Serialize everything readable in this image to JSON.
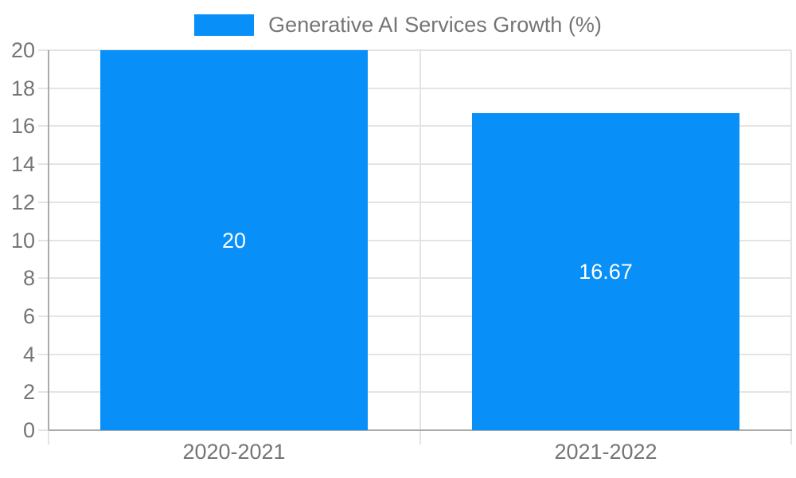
{
  "chart_data": {
    "type": "bar",
    "title": "Generative AI Services Growth (%)",
    "legend": [
      {
        "label": "Generative AI Services Growth (%)",
        "color": "#0990f8"
      }
    ],
    "legend_position": "top-center",
    "categories": [
      "2020-2021",
      "2021-2022"
    ],
    "series": [
      {
        "name": "Generative AI Services Growth (%)",
        "values": [
          20,
          16.67
        ]
      }
    ],
    "value_labels": [
      "20",
      "16.67"
    ],
    "xlabel": "",
    "ylabel": "",
    "ylim": [
      0,
      20
    ],
    "yticks": [
      0,
      2,
      4,
      6,
      8,
      10,
      12,
      14,
      16,
      18,
      20
    ],
    "grid": true,
    "colors": {
      "bar": "#0990f8",
      "grid": "#e4e4e4",
      "axis": "#ababab",
      "tick_label": "#757575",
      "legend_text": "#757575",
      "value_label": "#ffffff",
      "background": "#ffffff"
    }
  }
}
